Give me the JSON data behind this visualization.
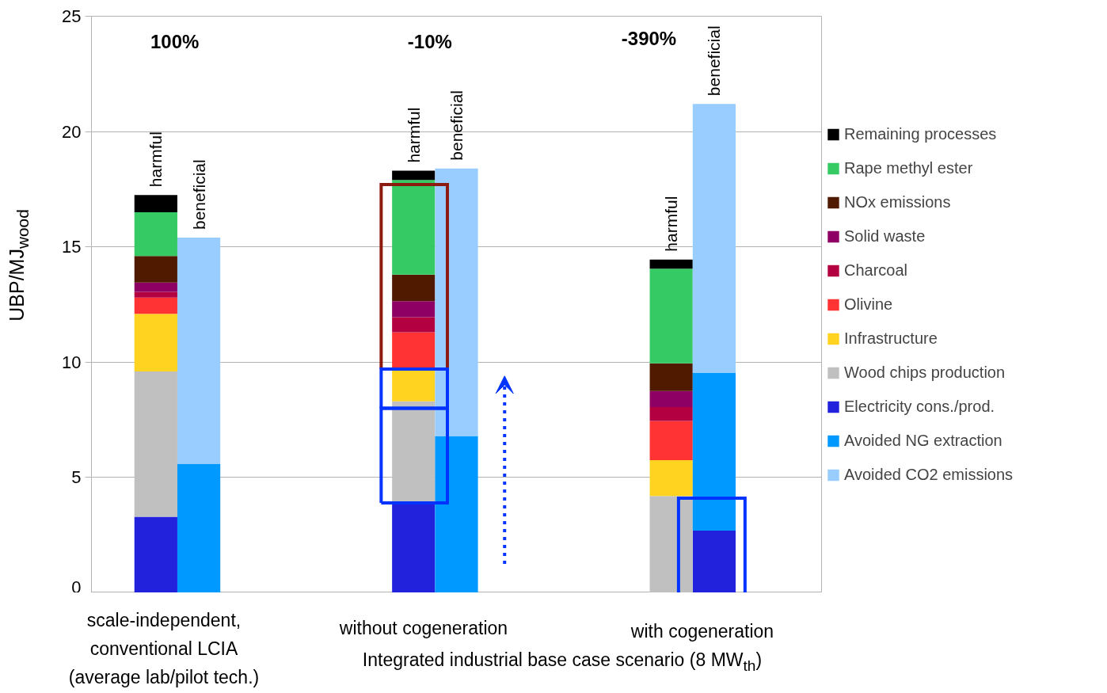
{
  "chart_data": {
    "type": "bar",
    "stacked": true,
    "ylabel": "UBP/MJ$_{wood}$",
    "categories": [
      null,
      null,
      null,
      null,
      null,
      null,
      null,
      null,
      null,
      null,
      null,
      null,
      null,
      null,
      null,
      null,
      null
    ],
    "series": [
      {
        "name": "Electricity cons./prod.",
        "color": "#2222dd",
        "values": [
          null,
          3.3,
          null,
          null,
          null,
          null,
          null,
          3.9,
          null,
          null,
          null,
          null,
          null,
          null,
          2.7,
          null,
          null
        ]
      },
      {
        "name": "Wood chips production",
        "color": "#c0c0c0",
        "values": [
          null,
          6.3,
          null,
          null,
          null,
          null,
          null,
          4.4,
          null,
          null,
          null,
          null,
          null,
          4.2,
          null,
          null,
          null
        ]
      },
      {
        "name": "Infrastructure",
        "color": "#ffd320",
        "values": [
          null,
          2.5,
          null,
          null,
          null,
          null,
          null,
          1.4,
          null,
          null,
          null,
          null,
          null,
          1.55,
          null,
          null,
          null
        ]
      },
      {
        "name": "Olivine",
        "color": "#ff3333",
        "values": [
          null,
          0.7,
          null,
          null,
          null,
          null,
          null,
          1.6,
          null,
          null,
          null,
          null,
          null,
          1.7,
          null,
          null,
          null
        ]
      },
      {
        "name": "Charcoal",
        "color": "#b30040",
        "values": [
          null,
          0.25,
          null,
          null,
          null,
          null,
          null,
          0.65,
          null,
          null,
          null,
          null,
          null,
          0.6,
          null,
          null,
          null
        ]
      },
      {
        "name": "Solid waste",
        "color": "#8f0064",
        "values": [
          null,
          0.4,
          null,
          null,
          null,
          null,
          null,
          0.7,
          null,
          null,
          null,
          null,
          null,
          0.7,
          null,
          null,
          null
        ]
      },
      {
        "name": "NOx emissions",
        "color": "#4f1a00",
        "values": [
          null,
          1.15,
          null,
          null,
          null,
          null,
          null,
          1.15,
          null,
          null,
          null,
          null,
          null,
          1.2,
          null,
          null,
          null
        ]
      },
      {
        "name": "Rape methyl ester",
        "color": "#36ca65",
        "values": [
          null,
          1.9,
          null,
          null,
          null,
          null,
          null,
          4.1,
          null,
          null,
          null,
          null,
          null,
          4.1,
          null,
          null,
          null
        ]
      },
      {
        "name": "Remaining processes",
        "color": "#000000",
        "values": [
          null,
          0.75,
          null,
          null,
          null,
          null,
          null,
          0.4,
          null,
          null,
          null,
          null,
          null,
          0.4,
          null,
          null,
          null
        ]
      },
      {
        "name": "Avoided NG extraction",
        "color": "#0099ff",
        "values": [
          null,
          null,
          5.6,
          null,
          null,
          null,
          null,
          null,
          6.8,
          null,
          null,
          null,
          null,
          null,
          6.85,
          null,
          null
        ]
      },
      {
        "name": "Avoided CO2 emissions",
        "color": "#99ccff",
        "values": [
          null,
          null,
          9.8,
          null,
          null,
          null,
          null,
          null,
          11.6,
          null,
          null,
          null,
          null,
          null,
          11.65,
          null,
          null
        ]
      }
    ],
    "ylim": [
      0,
      25
    ],
    "yticks": [
      0,
      5,
      10,
      15,
      20,
      25
    ],
    "grid": "y",
    "legend": "right",
    "annotations": [
      "100%",
      "-10%",
      "-390%",
      "scale-independent,\nconventional LCIA\n(average lab/pilot tech.)",
      "without cogeneration",
      "with cogeneration",
      "Integrated industrial base case scenario (8 MW$_{th}$)",
      "harmful",
      "beneficial",
      "harmful",
      "beneficial",
      "harmful",
      "beneficial"
    ]
  }
}
